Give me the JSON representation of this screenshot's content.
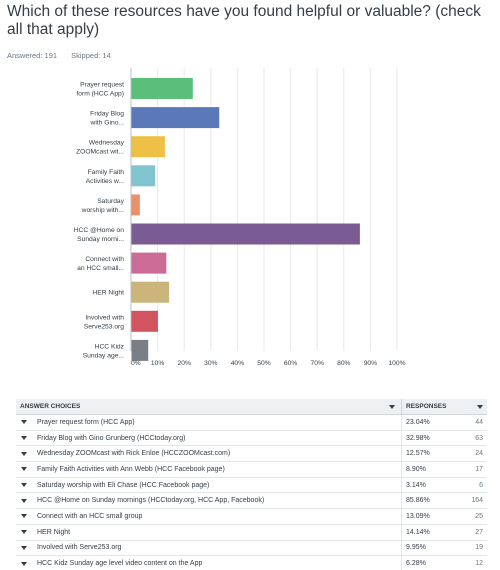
{
  "question": "Which of these resources have you found helpful or valuable? (check all that apply)",
  "answered": "Answered: 191",
  "skipped": "Skipped: 14",
  "chart_data": {
    "type": "bar",
    "orientation": "horizontal",
    "categories": [
      [
        "Prayer request",
        "form (HCC App)"
      ],
      [
        "Friday Blog",
        "with Gino..."
      ],
      [
        "Wednesday",
        "ZOOMcast wit..."
      ],
      [
        "Family Faith",
        "Activities w..."
      ],
      [
        "Saturday",
        "worship with..."
      ],
      [
        "HCC @Home on",
        "Sunday morni..."
      ],
      [
        "Connect with",
        "an HCC small..."
      ],
      [
        "HER Night"
      ],
      [
        "Involved with",
        "Serve253.org"
      ],
      [
        "HCC Kidz",
        "Sunday age..."
      ]
    ],
    "values": [
      23.04,
      32.98,
      12.57,
      8.9,
      3.14,
      85.86,
      13.09,
      14.14,
      9.95,
      6.28
    ],
    "colors": [
      "#5cbf79",
      "#5b79b9",
      "#efc046",
      "#7fc4cf",
      "#e9926a",
      "#7a5b93",
      "#cc6b95",
      "#cbb57b",
      "#d1545e",
      "#7a7f86"
    ],
    "xlim": [
      0,
      100
    ],
    "xticks": [
      "0%",
      "10%",
      "20%",
      "30%",
      "40%",
      "50%",
      "60%",
      "70%",
      "80%",
      "90%",
      "100%"
    ],
    "grid": true
  },
  "table": {
    "headers": {
      "choice": "ANSWER CHOICES",
      "responses": "RESPONSES"
    },
    "rows": [
      {
        "choice": "Prayer request form (HCC App)",
        "pct": "23.04%",
        "count": "44"
      },
      {
        "choice": "Friday Blog with Gino Grunberg (HCCtoday.org)",
        "pct": "32.98%",
        "count": "63"
      },
      {
        "choice": "Wednesday ZOOMcast with Rick Enloe (HCCZOOMcast.com)",
        "pct": "12.57%",
        "count": "24"
      },
      {
        "choice": "Family Faith Activities with Ann Webb (HCC Facebook page)",
        "pct": "8.90%",
        "count": "17"
      },
      {
        "choice": "Saturday worship with Eli Chase (HCC Facebook page)",
        "pct": "3.14%",
        "count": "6"
      },
      {
        "choice": "HCC @Home on Sunday mornings (HCCtoday.org, HCC App, Facebook)",
        "pct": "85.86%",
        "count": "164"
      },
      {
        "choice": "Connect with an HCC small group",
        "pct": "13.09%",
        "count": "25"
      },
      {
        "choice": "HER Night",
        "pct": "14.14%",
        "count": "27"
      },
      {
        "choice": "Involved with Serve253.org",
        "pct": "9.95%",
        "count": "19"
      },
      {
        "choice": "HCC Kidz Sunday age level video content on the App",
        "pct": "6.28%",
        "count": "12"
      }
    ]
  }
}
